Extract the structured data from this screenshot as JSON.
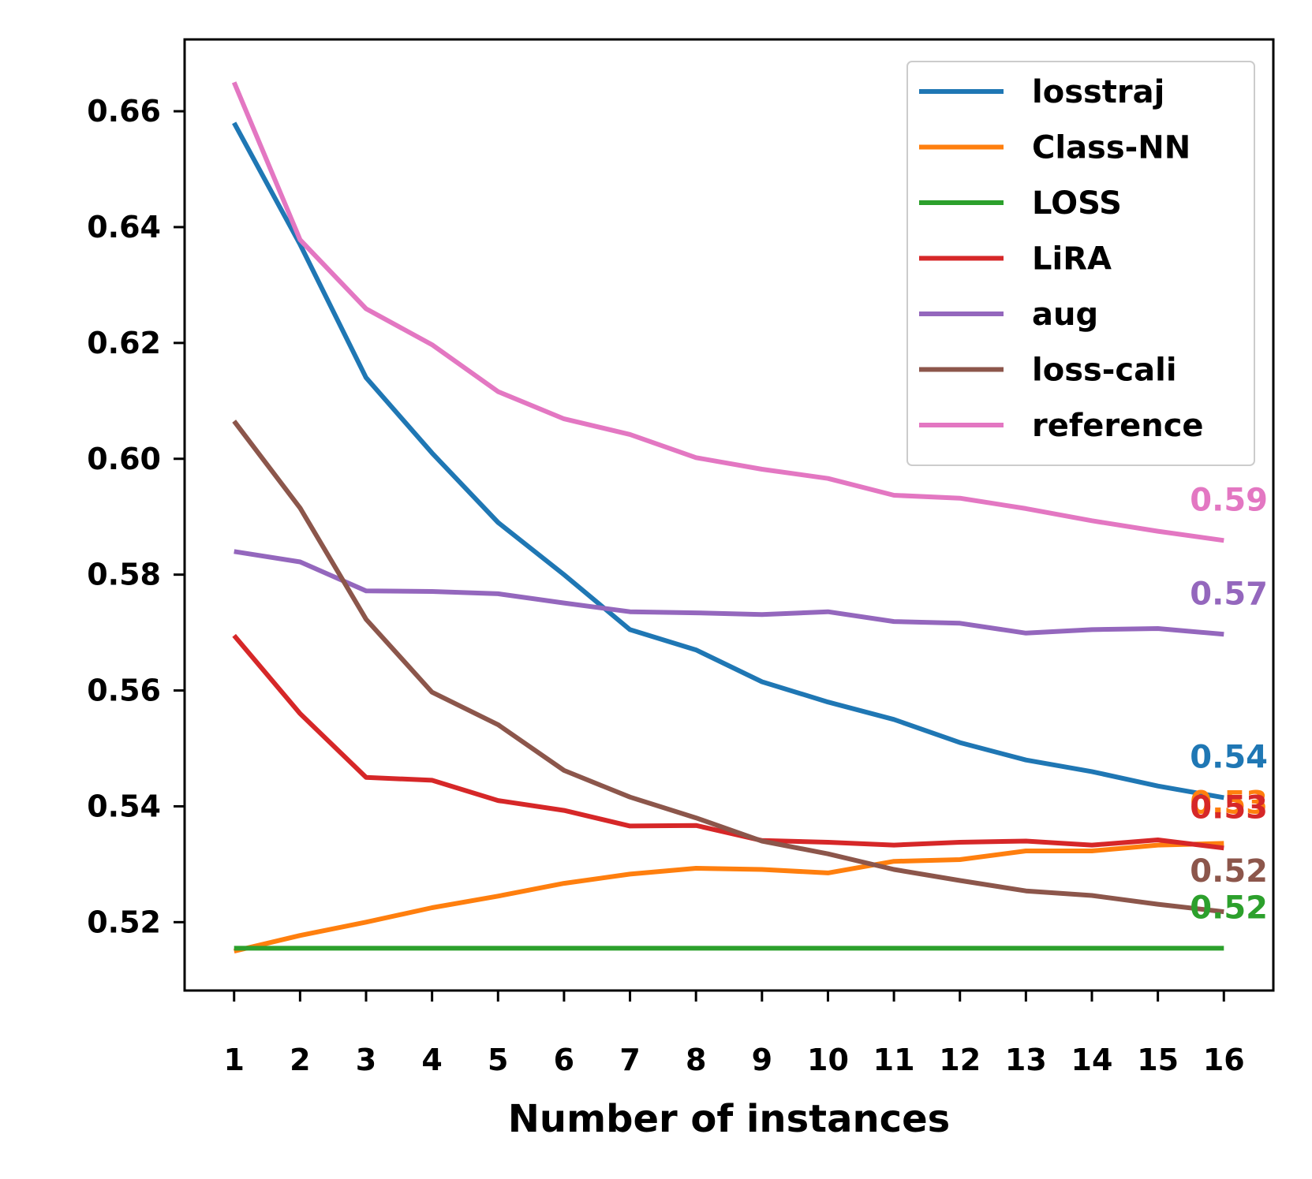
{
  "chart_data": {
    "type": "line",
    "title": "",
    "xlabel": "Number of instances",
    "ylabel": "",
    "x": [
      1,
      2,
      3,
      4,
      5,
      6,
      7,
      8,
      9,
      10,
      11,
      12,
      13,
      14,
      15,
      16
    ],
    "x_tick_labels": [
      "1",
      "2",
      "3",
      "4",
      "5",
      "6",
      "7",
      "8",
      "9",
      "10",
      "11",
      "12",
      "13",
      "14",
      "15",
      "16"
    ],
    "ylim": [
      0.5082,
      0.6724
    ],
    "y_ticks": [
      0.52,
      0.54,
      0.56,
      0.58,
      0.6,
      0.62,
      0.64,
      0.66
    ],
    "y_tick_labels": [
      "0.52",
      "0.54",
      "0.56",
      "0.58",
      "0.60",
      "0.62",
      "0.64",
      "0.66"
    ],
    "legend_position": "top-right",
    "grid": false,
    "series": [
      {
        "name": "losstraj",
        "color": "#1f77b4",
        "end_label": "0.54",
        "values": [
          0.658,
          0.637,
          0.614,
          0.601,
          0.589,
          0.58,
          0.5705,
          0.567,
          0.5615,
          0.558,
          0.555,
          0.551,
          0.548,
          0.546,
          0.5435,
          0.5415
        ]
      },
      {
        "name": "Class-NN",
        "color": "#ff7f0e",
        "end_label": "0.53",
        "values": [
          0.515,
          0.5177,
          0.52,
          0.5225,
          0.5245,
          0.5267,
          0.5283,
          0.5293,
          0.5291,
          0.5285,
          0.5305,
          0.5308,
          0.5323,
          0.5323,
          0.5333,
          0.5336
        ]
      },
      {
        "name": "LOSS",
        "color": "#2ca02c",
        "end_label": "0.52",
        "values": [
          0.5155,
          0.5155,
          0.5155,
          0.5155,
          0.5155,
          0.5155,
          0.5155,
          0.5155,
          0.5155,
          0.5155,
          0.5155,
          0.5155,
          0.5155,
          0.5155,
          0.5155,
          0.5155
        ]
      },
      {
        "name": "LiRA",
        "color": "#d62728",
        "end_label": "0.53",
        "values": [
          0.5695,
          0.556,
          0.545,
          0.5445,
          0.541,
          0.5393,
          0.5366,
          0.5367,
          0.5341,
          0.5338,
          0.5333,
          0.5338,
          0.534,
          0.5333,
          0.5342,
          0.5328
        ]
      },
      {
        "name": "aug",
        "color": "#9467bd",
        "end_label": "0.57",
        "values": [
          0.584,
          0.5822,
          0.5772,
          0.5771,
          0.5767,
          0.5751,
          0.5736,
          0.5734,
          0.5731,
          0.5736,
          0.5719,
          0.5716,
          0.5699,
          0.5705,
          0.5707,
          0.5697
        ]
      },
      {
        "name": "loss-cali",
        "color": "#8c564b",
        "end_label": "0.52",
        "values": [
          0.6065,
          0.5915,
          0.5723,
          0.5597,
          0.5541,
          0.5462,
          0.5416,
          0.538,
          0.534,
          0.5318,
          0.5291,
          0.5272,
          0.5254,
          0.5246,
          0.5231,
          0.5218
        ]
      },
      {
        "name": "reference",
        "color": "#e377c2",
        "end_label": "0.59",
        "values": [
          0.665,
          0.6378,
          0.6259,
          0.6197,
          0.6116,
          0.6069,
          0.6042,
          0.6002,
          0.5982,
          0.5966,
          0.5937,
          0.5932,
          0.5914,
          0.5893,
          0.5875,
          0.5859
        ]
      }
    ]
  }
}
